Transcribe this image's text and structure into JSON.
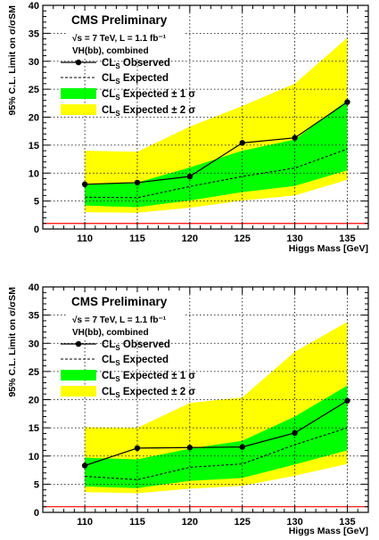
{
  "chart_data": [
    {
      "type": "line",
      "title": "CMS Preliminary",
      "info_line1": "√s = 7 TeV, L = 1.1 fb⁻¹",
      "info_line2": "VH(bb), combined",
      "xlabel": "Higgs Mass [GeV]",
      "ylabel": "95% C.L. Limit on σ/σSM",
      "xlim": [
        106,
        137
      ],
      "ylim": [
        0,
        40
      ],
      "x_ticks": [
        110,
        115,
        120,
        125,
        130,
        135
      ],
      "y_ticks": [
        0,
        5,
        10,
        15,
        20,
        25,
        30,
        35,
        40
      ],
      "grid": true,
      "reference_line": 1,
      "x": [
        110,
        115,
        120,
        125,
        130,
        135
      ],
      "series": [
        {
          "name": "CLs Observed",
          "values": [
            8.0,
            8.3,
            9.4,
            15.4,
            16.3,
            22.7
          ]
        },
        {
          "name": "CLs Expected",
          "values": [
            5.7,
            5.6,
            7.6,
            9.4,
            10.9,
            14.3
          ]
        },
        {
          "name": "CLs Expected ± 1 σ",
          "lower": [
            4.2,
            3.9,
            5.1,
            6.6,
            7.7,
            10.5
          ],
          "upper": [
            8.0,
            8.3,
            11.0,
            14.0,
            16.0,
            23.0
          ]
        },
        {
          "name": "CLs Expected ± 2 σ",
          "lower": [
            3.0,
            2.9,
            3.8,
            5.1,
            6.0,
            8.8
          ],
          "upper": [
            14.0,
            13.8,
            18.3,
            22.0,
            26.0,
            34.2
          ]
        }
      ],
      "legend": [
        {
          "style": "observed",
          "base": "CL",
          "sub": "S",
          "rest": " Observed"
        },
        {
          "style": "expected",
          "base": "CL",
          "sub": "S",
          "rest": " Expected"
        },
        {
          "style": "band1",
          "base": "CL",
          "sub": "S",
          "rest": " Expected ± 1 σ"
        },
        {
          "style": "band2",
          "base": "CL",
          "sub": "S",
          "rest": " Expected ± 2 σ"
        }
      ]
    },
    {
      "type": "line",
      "title": "CMS Preliminary",
      "info_line1": "√s = 7 TeV, L = 1.1 fb⁻¹",
      "info_line2": "VH(bb), combined",
      "xlabel": "Higgs Mass [GeV]",
      "ylabel": "95% C.L. Limit on σ/σSM",
      "xlim": [
        106,
        137
      ],
      "ylim": [
        0,
        40
      ],
      "x_ticks": [
        110,
        115,
        120,
        125,
        130,
        135
      ],
      "y_ticks": [
        0,
        5,
        10,
        15,
        20,
        25,
        30,
        35,
        40
      ],
      "grid": true,
      "reference_line": 1,
      "x": [
        110,
        115,
        120,
        125,
        130,
        135
      ],
      "series": [
        {
          "name": "CLs Observed",
          "values": [
            8.3,
            11.4,
            11.5,
            11.6,
            14.1,
            19.8
          ]
        },
        {
          "name": "CLs Expected",
          "values": [
            6.4,
            5.8,
            8.0,
            8.6,
            12.0,
            15.0
          ]
        },
        {
          "name": "CLs Expected ± 1 σ",
          "lower": [
            4.6,
            4.3,
            5.6,
            6.1,
            8.5,
            11.0
          ],
          "upper": [
            9.7,
            9.4,
            11.3,
            12.7,
            17.0,
            22.5
          ]
        },
        {
          "name": "CLs Expected ± 2 σ",
          "lower": [
            3.6,
            3.4,
            4.2,
            4.7,
            6.5,
            8.6
          ],
          "upper": [
            15.1,
            15.0,
            19.4,
            20.4,
            28.5,
            33.8
          ]
        }
      ],
      "legend": [
        {
          "style": "observed",
          "base": "CL",
          "sub": "S",
          "rest": " Observed"
        },
        {
          "style": "expected",
          "base": "CL",
          "sub": "S",
          "rest": " Expected"
        },
        {
          "style": "band1",
          "base": "CL",
          "sub": "S",
          "rest": " Expected ± 1 σ"
        },
        {
          "style": "band2",
          "base": "CL",
          "sub": "S",
          "rest": " Expected ± 2 σ"
        }
      ]
    }
  ],
  "colors": {
    "band1": "#00ff00",
    "band2": "#ffff00",
    "reference_line": "#ff0000",
    "observed": "#000000",
    "grid": "#000000"
  }
}
